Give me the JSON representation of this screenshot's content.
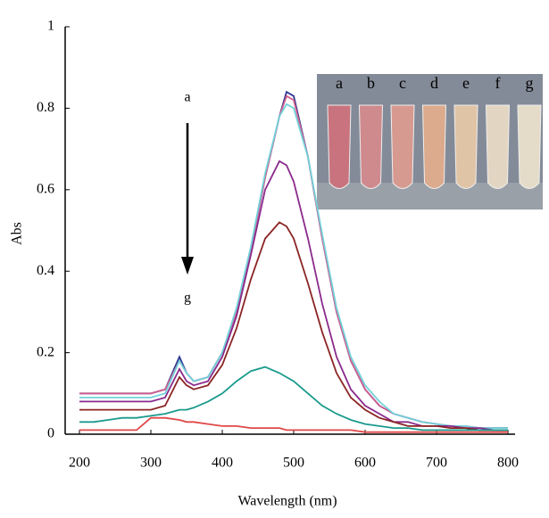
{
  "chart_data": {
    "type": "line",
    "xlabel": "Wavelength (nm)",
    "ylabel": "Abs",
    "xlim": [
      180,
      810
    ],
    "ylim": [
      0,
      1
    ],
    "xticks": [
      200,
      300,
      400,
      500,
      600,
      700,
      800
    ],
    "yticks": [
      0,
      0.2,
      0.4,
      0.6,
      0.8,
      1
    ],
    "arrow_labels": [
      "a",
      "g"
    ],
    "inset_labels": [
      "a",
      "b",
      "c",
      "d",
      "e",
      "f",
      "g"
    ],
    "x": [
      200,
      220,
      240,
      260,
      280,
      300,
      320,
      340,
      350,
      360,
      380,
      400,
      420,
      440,
      460,
      480,
      490,
      500,
      520,
      540,
      560,
      580,
      600,
      620,
      640,
      660,
      680,
      700,
      720,
      740,
      760,
      780,
      800
    ],
    "series": [
      {
        "color": "#2b3590",
        "values": [
          0.1,
          0.1,
          0.1,
          0.1,
          0.1,
          0.1,
          0.11,
          0.19,
          0.15,
          0.13,
          0.14,
          0.2,
          0.3,
          0.45,
          0.63,
          0.78,
          0.84,
          0.83,
          0.68,
          0.48,
          0.3,
          0.18,
          0.11,
          0.07,
          0.05,
          0.04,
          0.03,
          0.025,
          0.02,
          0.02,
          0.015,
          0.015,
          0.015
        ]
      },
      {
        "color": "#d0608e",
        "values": [
          0.1,
          0.1,
          0.1,
          0.1,
          0.1,
          0.1,
          0.11,
          0.18,
          0.15,
          0.13,
          0.14,
          0.2,
          0.3,
          0.45,
          0.63,
          0.78,
          0.83,
          0.82,
          0.68,
          0.48,
          0.3,
          0.18,
          0.11,
          0.07,
          0.05,
          0.04,
          0.03,
          0.025,
          0.02,
          0.02,
          0.015,
          0.015,
          0.015
        ]
      },
      {
        "color": "#72d2da",
        "values": [
          0.09,
          0.09,
          0.09,
          0.09,
          0.09,
          0.09,
          0.1,
          0.18,
          0.15,
          0.13,
          0.14,
          0.2,
          0.31,
          0.46,
          0.64,
          0.78,
          0.81,
          0.8,
          0.68,
          0.49,
          0.31,
          0.19,
          0.12,
          0.08,
          0.05,
          0.04,
          0.03,
          0.025,
          0.02,
          0.02,
          0.015,
          0.015,
          0.015
        ]
      },
      {
        "color": "#8a2a8c",
        "values": [
          0.08,
          0.08,
          0.08,
          0.08,
          0.08,
          0.08,
          0.09,
          0.16,
          0.13,
          0.12,
          0.13,
          0.19,
          0.29,
          0.44,
          0.6,
          0.67,
          0.66,
          0.62,
          0.48,
          0.32,
          0.19,
          0.11,
          0.07,
          0.05,
          0.03,
          0.03,
          0.02,
          0.02,
          0.02,
          0.015,
          0.015,
          0.01,
          0.01
        ]
      },
      {
        "color": "#8b2424",
        "values": [
          0.06,
          0.06,
          0.06,
          0.06,
          0.06,
          0.06,
          0.07,
          0.14,
          0.12,
          0.11,
          0.12,
          0.17,
          0.26,
          0.38,
          0.48,
          0.52,
          0.51,
          0.48,
          0.37,
          0.25,
          0.15,
          0.09,
          0.06,
          0.04,
          0.03,
          0.02,
          0.02,
          0.02,
          0.015,
          0.015,
          0.01,
          0.01,
          0.01
        ]
      },
      {
        "color": "#1a9a8c",
        "values": [
          0.03,
          0.03,
          0.035,
          0.04,
          0.04,
          0.045,
          0.05,
          0.06,
          0.06,
          0.065,
          0.08,
          0.1,
          0.13,
          0.155,
          0.165,
          0.15,
          0.14,
          0.13,
          0.1,
          0.07,
          0.05,
          0.035,
          0.025,
          0.02,
          0.015,
          0.015,
          0.01,
          0.01,
          0.01,
          0.01,
          0.01,
          0.01,
          0.01
        ]
      },
      {
        "color": "#e04848",
        "values": [
          0.01,
          0.01,
          0.01,
          0.01,
          0.01,
          0.04,
          0.04,
          0.035,
          0.03,
          0.03,
          0.025,
          0.02,
          0.02,
          0.015,
          0.015,
          0.015,
          0.01,
          0.01,
          0.01,
          0.01,
          0.01,
          0.01,
          0.005,
          0.005,
          0.005,
          0.005,
          0.005,
          0.005,
          0.005,
          0.005,
          0.005,
          0.005,
          0.005
        ]
      }
    ]
  }
}
